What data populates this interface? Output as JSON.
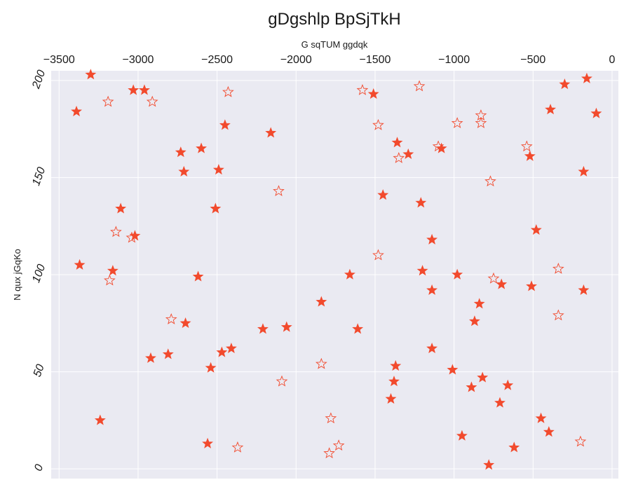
{
  "chart_data": {
    "type": "scatter",
    "title": "gDgshlp BpSjTkH",
    "xlabel": "G sqTUM ggdqk",
    "ylabel": "N qux jGqKo",
    "x_axis_position": "top",
    "xlim": [
      -3550,
      40
    ],
    "ylim": [
      -5,
      205
    ],
    "xticks": [
      -3500,
      -3000,
      -2500,
      -2000,
      -1500,
      -1000,
      -500,
      0
    ],
    "xtick_labels": [
      "−3500",
      "−3000",
      "−2500",
      "−2000",
      "−1500",
      "−1000",
      "−500",
      "0"
    ],
    "yticks": [
      0,
      50,
      100,
      150,
      200
    ],
    "ytick_labels": [
      "0",
      "50",
      "100",
      "150",
      "200"
    ],
    "grid": true,
    "colors": {
      "marker": "#f24a2d",
      "background": "#eaeaf2",
      "grid": "#ffffff"
    },
    "series": [
      {
        "marker": "filled-star",
        "points": [
          [
            -3300,
            203
          ],
          [
            -3030,
            195
          ],
          [
            -2960,
            195
          ],
          [
            -3390,
            184
          ],
          [
            -2450,
            177
          ],
          [
            -2160,
            173
          ],
          [
            -2730,
            163
          ],
          [
            -2600,
            165
          ],
          [
            -2710,
            153
          ],
          [
            -2490,
            154
          ],
          [
            -3110,
            134
          ],
          [
            -2510,
            134
          ],
          [
            -3020,
            120
          ],
          [
            -3370,
            105
          ],
          [
            -3160,
            102
          ],
          [
            -2620,
            99
          ],
          [
            -2700,
            75
          ],
          [
            -2920,
            57
          ],
          [
            -2810,
            59
          ],
          [
            -2540,
            52
          ],
          [
            -2470,
            60
          ],
          [
            -2410,
            62
          ],
          [
            -2210,
            72
          ],
          [
            -2060,
            73
          ],
          [
            -3240,
            25
          ],
          [
            -2560,
            13
          ],
          [
            -1840,
            86
          ],
          [
            -1660,
            100
          ],
          [
            -1610,
            72
          ],
          [
            -1510,
            193
          ],
          [
            -1360,
            168
          ],
          [
            -1290,
            162
          ],
          [
            -1080,
            165
          ],
          [
            -1450,
            141
          ],
          [
            -1210,
            137
          ],
          [
            -1140,
            118
          ],
          [
            -1200,
            102
          ],
          [
            -1140,
            92
          ],
          [
            -980,
            100
          ],
          [
            -840,
            85
          ],
          [
            -1370,
            53
          ],
          [
            -1380,
            45
          ],
          [
            -1400,
            36
          ],
          [
            -1140,
            62
          ],
          [
            -1010,
            51
          ],
          [
            -890,
            42
          ],
          [
            -820,
            47
          ],
          [
            -660,
            43
          ],
          [
            -950,
            17
          ],
          [
            -780,
            2
          ],
          [
            -620,
            11
          ],
          [
            -710,
            34
          ],
          [
            -870,
            76
          ],
          [
            -700,
            95
          ],
          [
            -510,
            94
          ],
          [
            -480,
            123
          ],
          [
            -520,
            161
          ],
          [
            -390,
            185
          ],
          [
            -300,
            198
          ],
          [
            -160,
            201
          ],
          [
            -180,
            153
          ],
          [
            -100,
            183
          ],
          [
            -180,
            92
          ],
          [
            -450,
            26
          ],
          [
            -400,
            19
          ]
        ]
      },
      {
        "marker": "hollow-star",
        "points": [
          [
            -3190,
            189
          ],
          [
            -2910,
            189
          ],
          [
            -2430,
            194
          ],
          [
            -1580,
            195
          ],
          [
            -1220,
            197
          ],
          [
            -1480,
            177
          ],
          [
            -1350,
            160
          ],
          [
            -1100,
            166
          ],
          [
            -980,
            178
          ],
          [
            -830,
            182
          ],
          [
            -830,
            178
          ],
          [
            -770,
            148
          ],
          [
            -540,
            166
          ],
          [
            -2110,
            143
          ],
          [
            -3140,
            122
          ],
          [
            -3040,
            119
          ],
          [
            -1480,
            110
          ],
          [
            -750,
            98
          ],
          [
            -340,
            103
          ],
          [
            -3180,
            97
          ],
          [
            -2790,
            77
          ],
          [
            -1840,
            54
          ],
          [
            -2090,
            45
          ],
          [
            -340,
            79
          ],
          [
            -1780,
            26
          ],
          [
            -1730,
            12
          ],
          [
            -1790,
            8
          ],
          [
            -2370,
            11
          ],
          [
            -200,
            14
          ]
        ]
      }
    ]
  }
}
